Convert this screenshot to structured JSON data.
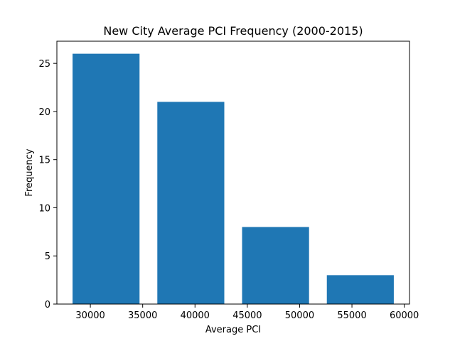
{
  "chart_data": {
    "type": "bar",
    "title": "New City Average PCI Frequency (2000-2015)",
    "xlabel": "Average PCI",
    "ylabel": "Frequency",
    "bars": [
      {
        "x_start": 28300,
        "x_end": 34700,
        "value": 26
      },
      {
        "x_start": 36400,
        "x_end": 42800,
        "value": 21
      },
      {
        "x_start": 44500,
        "x_end": 50900,
        "value": 8
      },
      {
        "x_start": 52600,
        "x_end": 59000,
        "value": 3
      }
    ],
    "xlim": [
      26800,
      60500
    ],
    "ylim": [
      0,
      27.3
    ],
    "xticks": [
      30000,
      35000,
      40000,
      45000,
      50000,
      55000,
      60000
    ],
    "yticks": [
      0,
      5,
      10,
      15,
      20,
      25
    ],
    "bar_color": "#1f77b4",
    "grid": false,
    "legend": "none"
  }
}
